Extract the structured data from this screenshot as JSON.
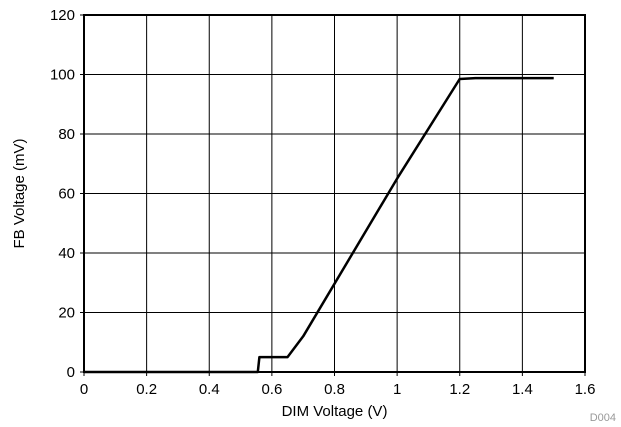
{
  "chart_data": {
    "type": "line",
    "title": "",
    "xlabel": "DIM Voltage (V)",
    "ylabel": "FB Voltage (mV)",
    "xlim": [
      0,
      1.6
    ],
    "ylim": [
      0,
      120
    ],
    "xticks": [
      "0",
      "0.2",
      "0.4",
      "0.6",
      "0.8",
      "1",
      "1.2",
      "1.4",
      "1.6"
    ],
    "yticks": [
      "0",
      "20",
      "40",
      "60",
      "80",
      "100",
      "120"
    ],
    "grid": true,
    "legend": "none",
    "line_color": "#000000",
    "series": [
      {
        "x": [
          0,
          0.55,
          0.555,
          0.56,
          0.65,
          0.7,
          1.0,
          1.2,
          1.25,
          1.5
        ],
        "y": [
          0,
          0,
          0,
          5,
          5,
          12,
          65,
          98.5,
          98.8,
          98.8
        ]
      }
    ]
  },
  "figure_id": "D004"
}
